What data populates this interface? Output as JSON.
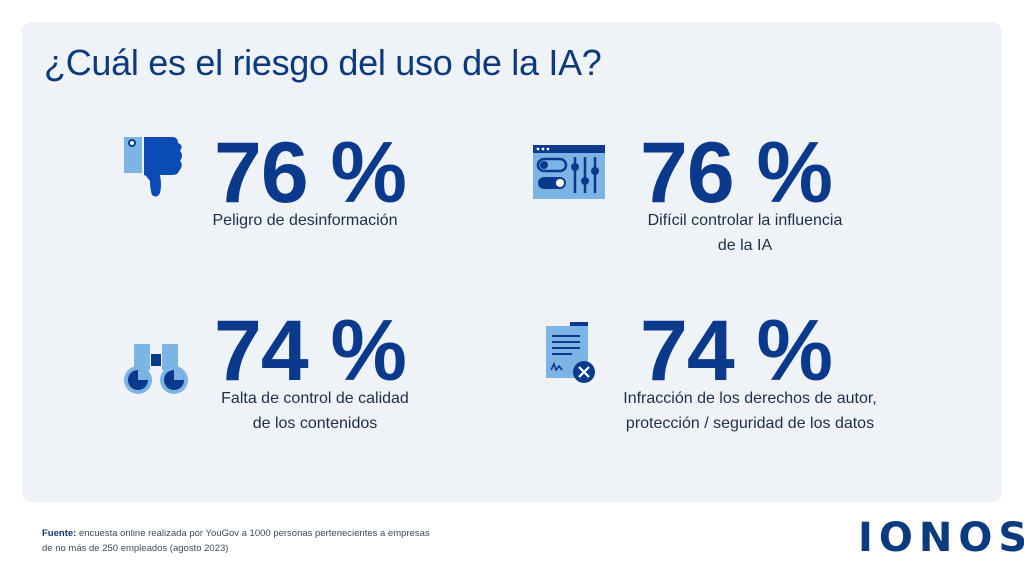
{
  "title": "¿Cuál es el riesgo del uso de la IA?",
  "stats": [
    {
      "value": "76 %",
      "label_lines": [
        "Peligro de desinformación"
      ],
      "icon": "thumbs-down-icon"
    },
    {
      "value": "76 %",
      "label_lines": [
        "Difícil controlar la influencia",
        "de la IA"
      ],
      "icon": "control-panel-icon"
    },
    {
      "value": "74 %",
      "label_lines": [
        "Falta de control de calidad",
        "de los contenidos"
      ],
      "icon": "binoculars-icon"
    },
    {
      "value": "74 %",
      "label_lines": [
        "Infracción de los derechos de autor,",
        "protección / seguridad de los datos"
      ],
      "icon": "document-rejected-icon"
    }
  ],
  "source": {
    "label": "Fuente:",
    "line1": " encuesta online realizada por YouGov a 1000 personas pertenecientes a empresas",
    "line2": "de no más de 250 empleados (agosto 2023)"
  },
  "logo": "IONOS",
  "colors": {
    "accent": "#0b3a8c",
    "light_blue": "#7db4e6",
    "panel": "#eff3f7"
  }
}
